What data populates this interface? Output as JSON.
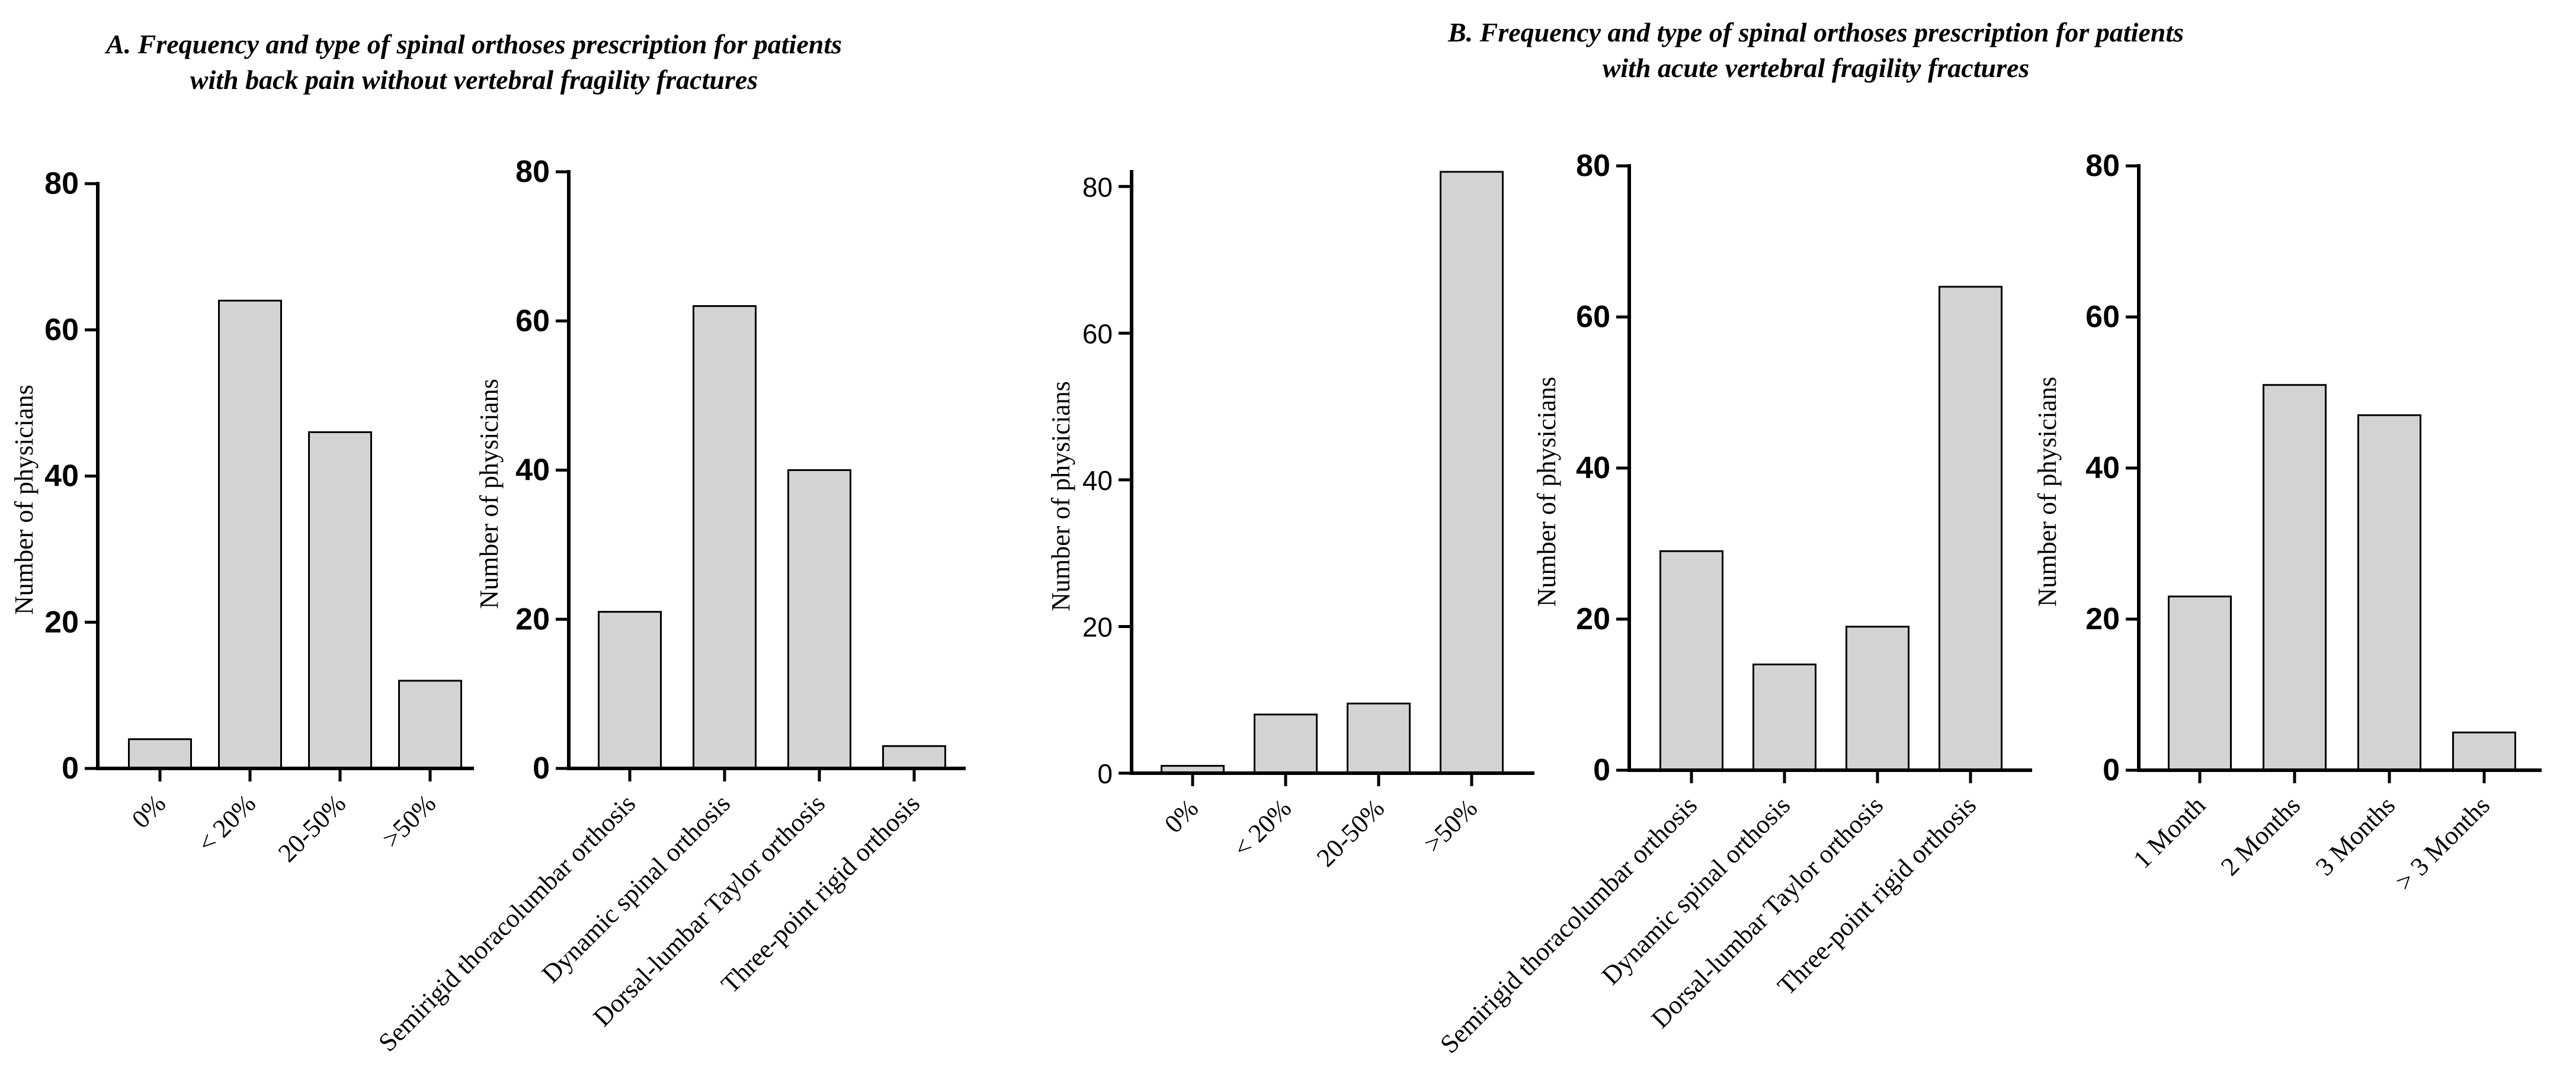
{
  "titles": {
    "a": [
      "A. Frequency and type of spinal orthoses prescription for patients",
      "with back pain without vertebral fragility fractures"
    ],
    "b": [
      "B. Frequency and type of spinal orthoses prescription for patients",
      "with acute vertebral fragility fractures"
    ]
  },
  "colors": {
    "bar_fill": "#d3d3d3",
    "bar_stroke": "#000000",
    "axis": "#000000"
  },
  "chart_data": [
    {
      "id": "a1",
      "type": "bar",
      "group": "A",
      "ylabel": "Number of physicians",
      "ylim": [
        0,
        80
      ],
      "yticks": [
        0,
        20,
        40,
        60,
        80
      ],
      "tick_style": "bold",
      "categories": [
        "0%",
        "< 20%",
        "20-50%",
        ">50%"
      ],
      "values": [
        4,
        64,
        46,
        12
      ]
    },
    {
      "id": "a2",
      "type": "bar",
      "group": "A",
      "ylabel": "Number of physicians",
      "ylim": [
        0,
        80
      ],
      "yticks": [
        0,
        20,
        40,
        60,
        80
      ],
      "tick_style": "bold",
      "categories": [
        "Semirigid thoracolumbar orthosis",
        "Dynamic spinal orthosis",
        "Dorsal-lumbar Taylor orthosis",
        "Three-point rigid orthosis"
      ],
      "values": [
        21,
        62,
        40,
        3
      ]
    },
    {
      "id": "b1",
      "type": "bar",
      "group": "B",
      "ylabel": "Number of physicians",
      "ylim": [
        0,
        82
      ],
      "yticks": [
        0,
        20,
        40,
        60,
        80
      ],
      "tick_style": "normal",
      "categories": [
        "0%",
        "< 20%",
        "20-50%",
        ">50%"
      ],
      "values": [
        1,
        8,
        9.5,
        82
      ]
    },
    {
      "id": "b2",
      "type": "bar",
      "group": "B",
      "ylabel": "Number of physicians",
      "ylim": [
        0,
        80
      ],
      "yticks": [
        0,
        20,
        40,
        60,
        80
      ],
      "tick_style": "bold",
      "categories": [
        "Semirigid thoracolumbar orthosis",
        "Dynamic spinal orthosis",
        "Dorsal-lumbar Taylor orthosis",
        "Three-point rigid orthosis"
      ],
      "values": [
        29,
        14,
        19,
        64
      ]
    },
    {
      "id": "b3",
      "type": "bar",
      "group": "B",
      "ylabel": "Number of physicians",
      "ylim": [
        0,
        80
      ],
      "yticks": [
        0,
        20,
        40,
        60,
        80
      ],
      "tick_style": "bold",
      "categories": [
        "1 Month",
        "2 Months",
        "3 Months",
        "> 3 Months"
      ],
      "values": [
        23,
        51,
        47,
        5
      ]
    }
  ]
}
